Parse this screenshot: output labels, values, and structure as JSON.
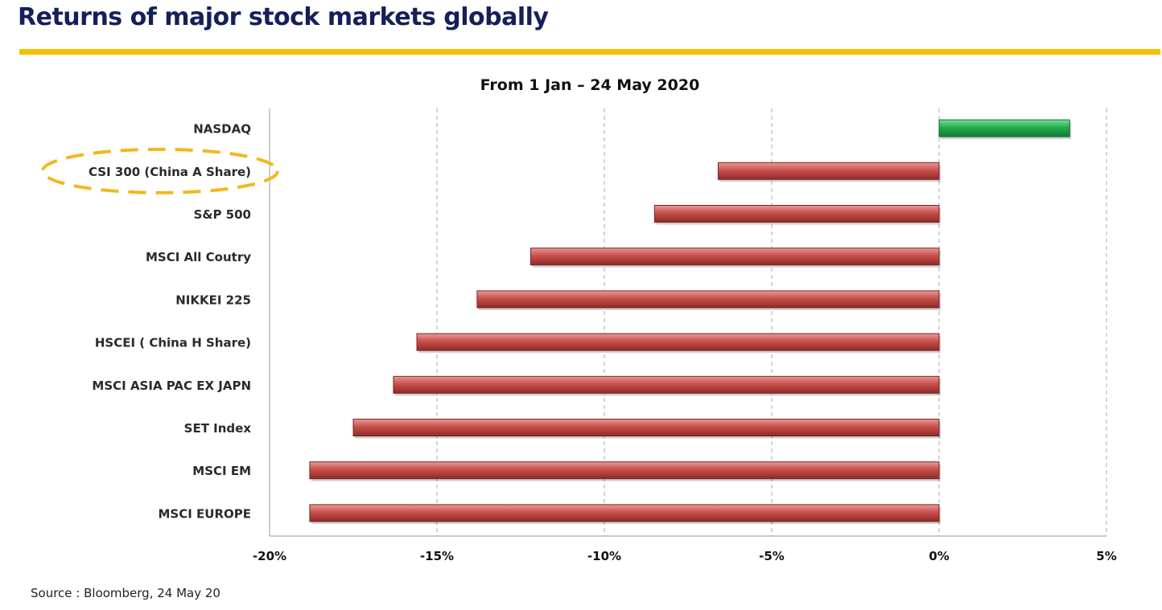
{
  "header": {
    "title": "Returns of major stock markets globally",
    "rule_color": "#F6C000",
    "title_color": "#14205A"
  },
  "chart_data": {
    "type": "bar",
    "orientation": "horizontal",
    "title": "From 1 Jan – 24 May 2020",
    "xlabel": "",
    "ylabel": "",
    "categories": [
      "NASDAQ",
      "CSI 300 (China A Share)",
      "S&P 500",
      "MSCI All Coutry",
      "NIKKEI 225",
      "HSCEI ( China H Share)",
      "MSCI ASIA PAC EX JAPN",
      "SET Index",
      "MSCI EM",
      "MSCI EUROPE"
    ],
    "values": [
      3.9,
      -6.6,
      -8.5,
      -12.2,
      -13.8,
      -15.6,
      -16.3,
      -17.5,
      -18.8,
      -18.8
    ],
    "unit": "%",
    "xlim": [
      -20,
      5
    ],
    "xticks": [
      -20,
      -15,
      -10,
      -5,
      0,
      5
    ],
    "xtick_labels": [
      "-20%",
      "-15%",
      "-10%",
      "-5%",
      "0%",
      "5%"
    ],
    "grid": "vertical dashed",
    "colors": {
      "positive": "#1FAA4B",
      "negative": "#C0504D"
    },
    "highlighted_category": "CSI 300 (China A Share)",
    "highlight_color": "#F2B81C"
  },
  "footer": {
    "source": "Source : Bloomberg, 24 May 20"
  }
}
